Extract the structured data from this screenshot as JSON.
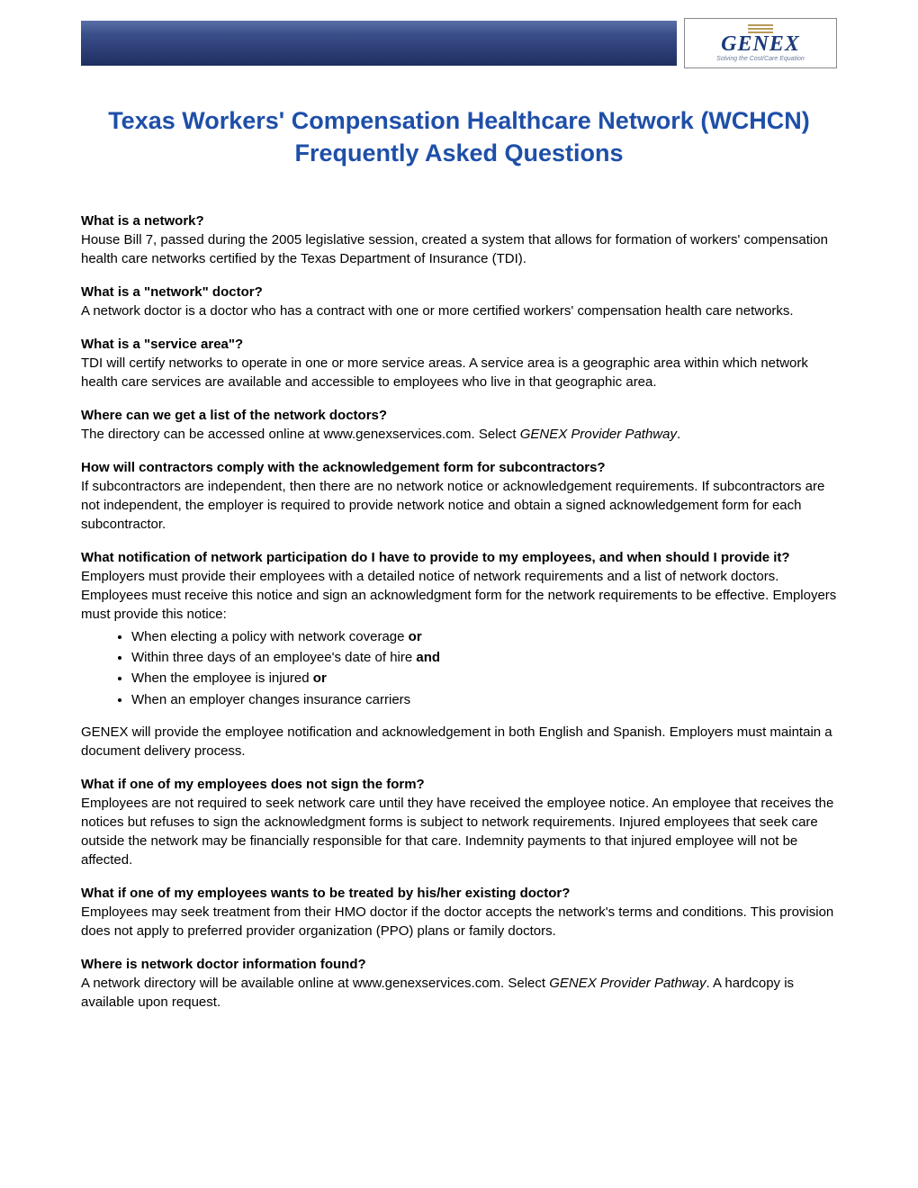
{
  "logo": {
    "text": "GENEX",
    "tagline": "Solving the Cost/Care Equation"
  },
  "title": "Texas Workers' Compensation Healthcare Network (WCHCN) Frequently Asked Questions",
  "faqs": [
    {
      "q": "What is a network?",
      "a": "House Bill 7, passed during the 2005 legislative session, created a system that allows for formation of workers' compensation health care networks certified by the Texas Department of Insurance (TDI)."
    },
    {
      "q": "What is a \"network\" doctor?",
      "a": "A network doctor is a doctor who has a contract with one or more certified workers' compensation health care networks."
    },
    {
      "q": "What is a \"service area\"?",
      "a": "TDI will certify networks to operate in one or more service areas. A service area is a geographic area within which network health care services are available and accessible to employees who live in that geographic area."
    },
    {
      "q": "Where can we get a list of the network doctors?",
      "a_prefix": "The directory can be accessed online at www.genexservices.com. Select ",
      "a_italic": "GENEX Provider Pathway",
      "a_suffix": "."
    },
    {
      "q": "How will contractors comply with the acknowledgement form for subcontractors?",
      "a": "If subcontractors are independent, then there are no network notice or acknowledgement requirements. If subcontractors are not independent, the employer is required to provide network notice and obtain a signed acknowledgement form for each subcontractor."
    },
    {
      "q": "What notification of network participation do I have to provide to my employees, and when should I provide it?",
      "a": "Employers must provide their employees with a detailed notice of network requirements and a list of network doctors. Employees must receive this notice and sign an acknowledgment form for the network requirements to be effective. Employers must provide this notice:",
      "bullets": [
        {
          "text": "When electing a policy with network coverage ",
          "bold": "or"
        },
        {
          "text": "Within three days of an employee's date of hire ",
          "bold": "and"
        },
        {
          "text": "When the employee is injured ",
          "bold": "or"
        },
        {
          "text": "When an employer changes insurance carriers",
          "bold": ""
        }
      ],
      "a2": "GENEX will provide the employee notification and acknowledgement in both English and Spanish. Employers must maintain a document delivery process."
    },
    {
      "q": "What if one of my employees does not sign the form?",
      "a": "Employees are not required to seek network care until they have received the employee notice. An employee that receives the notices but refuses to sign the acknowledgment forms is subject to network requirements. Injured employees that seek care outside the network may be financially responsible for that care. Indemnity payments to that injured employee will not be affected."
    },
    {
      "q": "What if one of my employees wants to be treated by his/her existing doctor?",
      "a": "Employees may seek treatment from their HMO doctor if the doctor accepts the network's terms and conditions. This provision does not apply to preferred provider organization (PPO) plans or family doctors."
    },
    {
      "q": "Where is network doctor information found?",
      "a_prefix": "A network directory will be available online at www.genexservices.com.  Select ",
      "a_italic": "GENEX Provider Pathway",
      "a_suffix": ". A hardcopy is available upon request."
    }
  ]
}
